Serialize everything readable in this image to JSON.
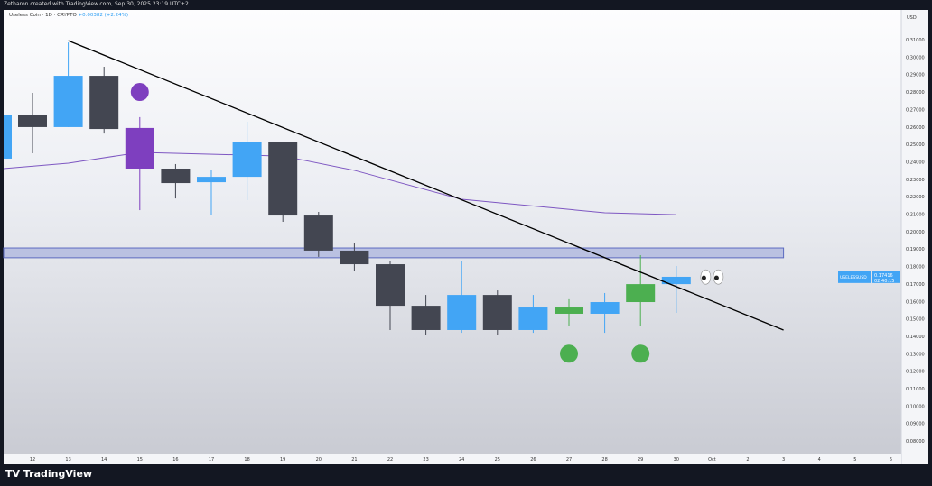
{
  "header": {
    "attribution": "Zetharon created with TradingView.com, Sep 30, 2025 23:19 UTC+2"
  },
  "legend": {
    "symbol": "Useless Coin · 1D · CRYPTO",
    "change": "+0.00382 (+2.24%)"
  },
  "brand": "TradingView",
  "chart_data": {
    "type": "candlestick",
    "currency": "USD",
    "ylim": [
      0.075,
      0.315
    ],
    "y_ticks": [
      "0.31000",
      "0.30000",
      "0.29000",
      "0.28000",
      "0.27000",
      "0.26000",
      "0.25000",
      "0.24000",
      "0.23000",
      "0.22000",
      "0.21000",
      "0.20000",
      "0.19000",
      "0.18000",
      "0.17000",
      "0.16000",
      "0.15000",
      "0.14000",
      "0.13000",
      "0.12000",
      "0.11000",
      "0.10000",
      "0.09000",
      "0.08000"
    ],
    "x_ticks": [
      "12",
      "13",
      "14",
      "15",
      "16",
      "17",
      "18",
      "19",
      "20",
      "21",
      "22",
      "23",
      "24",
      "25",
      "26",
      "27",
      "28",
      "29",
      "30",
      "Oct",
      "2",
      "3",
      "4",
      "5",
      "6"
    ],
    "candles": [
      {
        "d": "11",
        "o": 0.2418,
        "h": 0.2666,
        "l": 0.2418,
        "c": 0.2666,
        "color": "#42a5f5"
      },
      {
        "d": "12",
        "o": 0.2599,
        "h": 0.2795,
        "l": 0.2449,
        "c": 0.2666,
        "color": "#434651"
      },
      {
        "d": "13",
        "o": 0.2599,
        "h": 0.3084,
        "l": 0.2599,
        "c": 0.2893,
        "color": "#42a5f5"
      },
      {
        "d": "14",
        "o": 0.2893,
        "h": 0.2945,
        "l": 0.2562,
        "c": 0.2588,
        "color": "#434651"
      },
      {
        "d": "15",
        "o": 0.2594,
        "h": 0.2656,
        "l": 0.2123,
        "c": 0.2361,
        "color": "#7e3fbf"
      },
      {
        "d": "16",
        "o": 0.2361,
        "h": 0.2387,
        "l": 0.219,
        "c": 0.2278,
        "color": "#434651"
      },
      {
        "d": "17",
        "o": 0.2283,
        "h": 0.2356,
        "l": 0.2097,
        "c": 0.2314,
        "color": "#42a5f5"
      },
      {
        "d": "18",
        "o": 0.2314,
        "h": 0.263,
        "l": 0.218,
        "c": 0.2516,
        "color": "#42a5f5"
      },
      {
        "d": "19",
        "o": 0.2516,
        "h": 0.2516,
        "l": 0.2056,
        "c": 0.2092,
        "color": "#434651"
      },
      {
        "d": "20",
        "o": 0.2092,
        "h": 0.2113,
        "l": 0.1855,
        "c": 0.1891,
        "color": "#434651"
      },
      {
        "d": "21",
        "o": 0.1891,
        "h": 0.1932,
        "l": 0.1777,
        "c": 0.1813,
        "color": "#434651"
      },
      {
        "d": "22",
        "o": 0.1813,
        "h": 0.1834,
        "l": 0.1436,
        "c": 0.1575,
        "color": "#434651"
      },
      {
        "d": "23",
        "o": 0.1575,
        "h": 0.1637,
        "l": 0.141,
        "c": 0.1436,
        "color": "#434651"
      },
      {
        "d": "24",
        "o": 0.1436,
        "h": 0.1829,
        "l": 0.142,
        "c": 0.1637,
        "color": "#42a5f5"
      },
      {
        "d": "25",
        "o": 0.1637,
        "h": 0.1663,
        "l": 0.1405,
        "c": 0.1436,
        "color": "#434651"
      },
      {
        "d": "26",
        "o": 0.1436,
        "h": 0.1637,
        "l": 0.142,
        "c": 0.1565,
        "color": "#42a5f5"
      },
      {
        "d": "27",
        "o": 0.1529,
        "h": 0.1612,
        "l": 0.1457,
        "c": 0.1565,
        "color": "#4caf50"
      },
      {
        "d": "28",
        "o": 0.1529,
        "h": 0.1648,
        "l": 0.142,
        "c": 0.1596,
        "color": "#42a5f5"
      },
      {
        "d": "29",
        "o": 0.1596,
        "h": 0.1865,
        "l": 0.1457,
        "c": 0.1699,
        "color": "#4caf50"
      },
      {
        "d": "30",
        "o": 0.1699,
        "h": 0.1803,
        "l": 0.1534,
        "c": 0.1741,
        "color": "#42a5f5"
      }
    ],
    "moving_average": {
      "color": "#7e57c2",
      "points": [
        [
          "11",
          0.2361
        ],
        [
          "13",
          0.2392
        ],
        [
          "15",
          0.2454
        ],
        [
          "19",
          0.2433
        ],
        [
          "21",
          0.2351
        ],
        [
          "24",
          0.2185
        ],
        [
          "28",
          0.2108
        ],
        [
          "30",
          0.2097
        ]
      ]
    },
    "trendline": {
      "color": "#000000",
      "from": [
        "13",
        0.3094
      ],
      "to": [
        "3",
        0.1436
      ]
    },
    "zone": {
      "from": "11",
      "to": "3",
      "top": 0.1906,
      "bottom": 0.185,
      "color": "#9fa8da"
    },
    "markers": [
      {
        "d": "15",
        "price": 0.28,
        "color": "#7e3fbf"
      },
      {
        "d": "27",
        "price": 0.13,
        "color": "#4caf50"
      },
      {
        "d": "29",
        "price": 0.13,
        "color": "#4caf50"
      }
    ],
    "eyes_marker": {
      "d": "Oct",
      "price": 0.174
    },
    "last_price": {
      "symbol": "USELESSUSD",
      "price": "0.17416",
      "countdown": "02:40:15",
      "color": "#42a5f5"
    }
  }
}
